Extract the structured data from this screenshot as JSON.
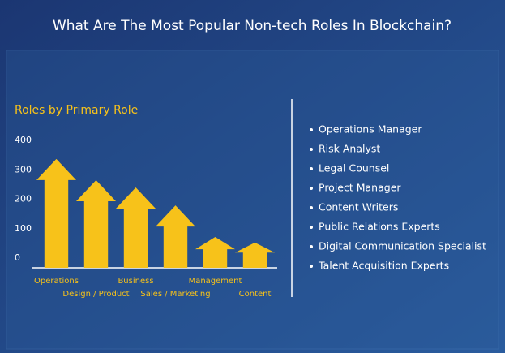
{
  "title": "What Are The Most Popular Non-tech Roles In Blockchain?",
  "chart_data": {
    "type": "bar",
    "title": "Roles by Primary Role",
    "categories": [
      "Operations",
      "Design / Product",
      "Business",
      "Sales / Marketing",
      "Management",
      "Content"
    ],
    "values": [
      370,
      298,
      273,
      212,
      105,
      86
    ],
    "color": "#f7c21a",
    "ylim": [
      0,
      400
    ],
    "yticks": [
      0,
      100,
      200,
      300,
      400
    ],
    "grid": false
  },
  "roles": [
    "Operations Manager",
    "Risk Analyst",
    "Legal Counsel",
    "Project Manager",
    "Content Writers",
    "Public Relations Experts",
    "Digital Communication Specialist",
    "Talent Acquisition Experts"
  ]
}
